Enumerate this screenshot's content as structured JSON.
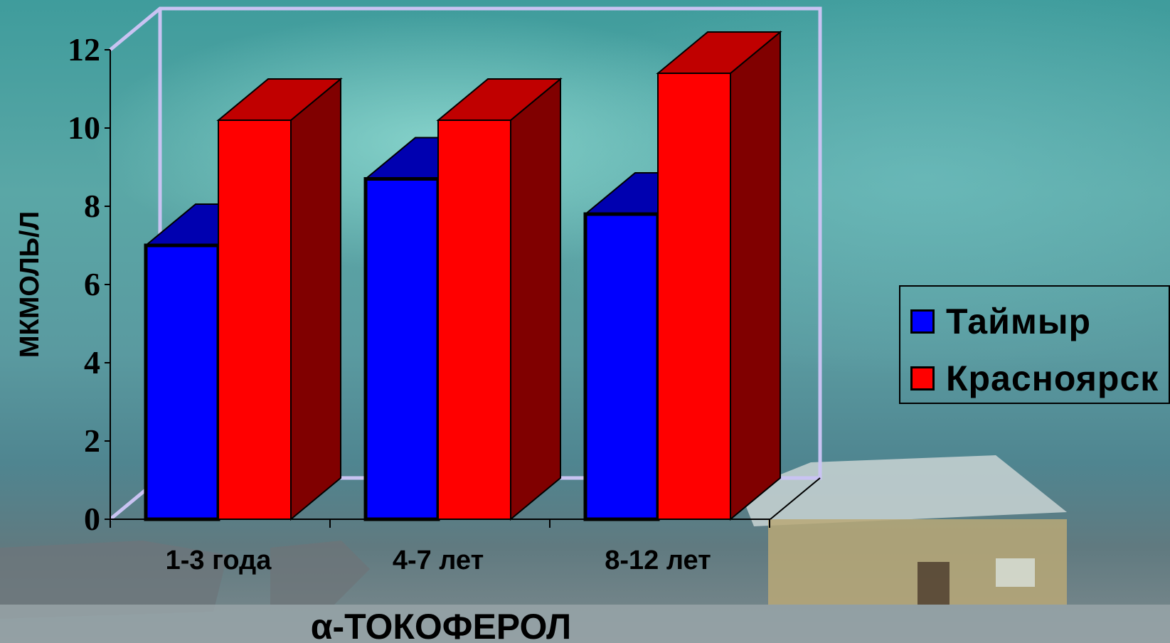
{
  "chart_data": {
    "type": "bar",
    "categories": [
      "1-3 года",
      "4-7 лет",
      "8-12 лет"
    ],
    "series": [
      {
        "name": "Таймыр",
        "values": [
          7.0,
          8.7,
          7.8
        ],
        "color": "#0000FF"
      },
      {
        "name": "Красноярск",
        "values": [
          10.2,
          10.2,
          11.4
        ],
        "color": "#FF0000"
      }
    ],
    "xlabel": "α-ТОКОФЕРОЛ",
    "ylabel": "МКМОЛЬ/Л",
    "ylim": [
      0,
      12
    ],
    "yticks": [
      "0",
      "2",
      "4",
      "6",
      "8",
      "10",
      "12"
    ],
    "legend_position": "right",
    "style": "3d"
  }
}
